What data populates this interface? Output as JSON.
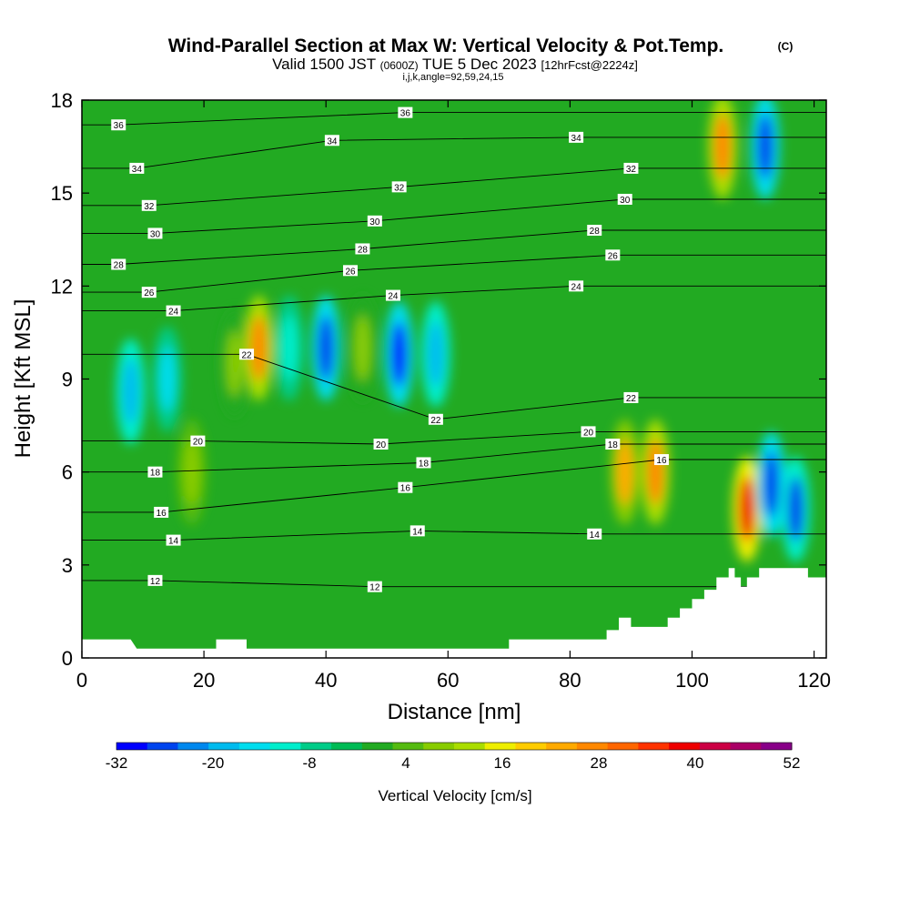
{
  "header": {
    "title": "Wind-Parallel Section at Max W: Vertical Velocity & Pot.Temp.",
    "copyright": "(C)",
    "valid_prefix": "Valid 1500 JST",
    "valid_z": "(0600Z)",
    "valid_date": "TUE 5 Dec 2023",
    "forecast": "[12hrFcst@2224z]",
    "indices": "i,j,k,angle=92,59,24,15"
  },
  "colorbar": {
    "label": "Vertical Velocity [cm/s]",
    "tick_labels": [
      "-32",
      "-20",
      "-8",
      "4",
      "16",
      "28",
      "40",
      "52"
    ],
    "min": -32,
    "max": 52,
    "step": 4,
    "colors": [
      "#0000ff",
      "#0044ee",
      "#0088ee",
      "#00bbee",
      "#00ddee",
      "#00eecc",
      "#00cc88",
      "#00bb55",
      "#22aa22",
      "#55bb11",
      "#88cc00",
      "#aadd00",
      "#eeee00",
      "#ffcc00",
      "#ffaa00",
      "#ff8800",
      "#ff6600",
      "#ff3300",
      "#ee0000",
      "#cc0044",
      "#aa0066",
      "#880088"
    ]
  },
  "chart_data": {
    "type": "heatmap",
    "title": "Wind-Parallel Section at Max W: Vertical Velocity & Pot.Temp.",
    "xlabel": "Distance [nm]",
    "ylabel": "Height [Kft MSL]",
    "xlim": [
      0,
      122
    ],
    "ylim": [
      0,
      18
    ],
    "x_ticks": [
      0,
      20,
      40,
      60,
      80,
      100,
      120
    ],
    "y_ticks": [
      0,
      3,
      6,
      9,
      12,
      15,
      18
    ],
    "field": "Vertical Velocity [cm/s]",
    "contour_field": "Potential Temperature",
    "features": [
      {
        "x": 8,
        "y": 8.6,
        "w": -18
      },
      {
        "x": 14,
        "y": 9.0,
        "w": -16
      },
      {
        "x": 18,
        "y": 6.0,
        "w": 10
      },
      {
        "x": 25,
        "y": 9.5,
        "w": 8
      },
      {
        "x": 29,
        "y": 10.0,
        "w": 30
      },
      {
        "x": 34,
        "y": 10.0,
        "w": -12
      },
      {
        "x": 40,
        "y": 10.0,
        "w": -28
      },
      {
        "x": 46,
        "y": 10.0,
        "w": 8
      },
      {
        "x": 52,
        "y": 9.8,
        "w": -30
      },
      {
        "x": 58,
        "y": 9.8,
        "w": -18
      },
      {
        "x": 89,
        "y": 6.0,
        "w": 24
      },
      {
        "x": 94,
        "y": 6.0,
        "w": 28
      },
      {
        "x": 105,
        "y": 16.5,
        "w": 30
      },
      {
        "x": 112,
        "y": 16.5,
        "w": -28
      },
      {
        "x": 109,
        "y": 4.8,
        "w": 42
      },
      {
        "x": 113,
        "y": 5.6,
        "w": -28
      },
      {
        "x": 117,
        "y": 4.8,
        "w": -26
      }
    ],
    "terrain": [
      [
        0,
        0.6
      ],
      [
        8,
        0.6
      ],
      [
        9,
        0.3
      ],
      [
        22,
        0.3
      ],
      [
        22,
        0.6
      ],
      [
        27,
        0.6
      ],
      [
        27,
        0.3
      ],
      [
        70,
        0.3
      ],
      [
        70,
        0.6
      ],
      [
        86,
        0.6
      ],
      [
        86,
        0.9
      ],
      [
        88,
        0.9
      ],
      [
        88,
        1.3
      ],
      [
        90,
        1.3
      ],
      [
        90,
        1.0
      ],
      [
        96,
        1.0
      ],
      [
        96,
        1.3
      ],
      [
        98,
        1.3
      ],
      [
        98,
        1.6
      ],
      [
        100,
        1.6
      ],
      [
        100,
        1.9
      ],
      [
        102,
        1.9
      ],
      [
        102,
        2.2
      ],
      [
        104,
        2.2
      ],
      [
        104,
        2.6
      ],
      [
        106,
        2.6
      ],
      [
        106,
        2.9
      ],
      [
        107,
        2.9
      ],
      [
        107,
        2.6
      ],
      [
        108,
        2.6
      ],
      [
        108,
        2.3
      ],
      [
        109,
        2.3
      ],
      [
        109,
        2.6
      ],
      [
        111,
        2.6
      ],
      [
        111,
        2.9
      ],
      [
        119,
        2.9
      ],
      [
        119,
        2.6
      ],
      [
        121,
        2.6
      ]
    ],
    "contours": [
      {
        "level": "12",
        "label_x": 12,
        "label_y": 2.5
      },
      {
        "level": "12",
        "label_x": 48,
        "label_y": 2.3
      },
      {
        "level": "14",
        "label_x": 15,
        "label_y": 3.8
      },
      {
        "level": "14",
        "label_x": 55,
        "label_y": 4.1
      },
      {
        "level": "14",
        "label_x": 84,
        "label_y": 4.0
      },
      {
        "level": "16",
        "label_x": 13,
        "label_y": 4.7
      },
      {
        "level": "16",
        "label_x": 53,
        "label_y": 5.5
      },
      {
        "level": "16",
        "label_x": 95,
        "label_y": 6.4
      },
      {
        "level": "18",
        "label_x": 12,
        "label_y": 6.0
      },
      {
        "level": "18",
        "label_x": 56,
        "label_y": 6.3
      },
      {
        "level": "18",
        "label_x": 87,
        "label_y": 6.9
      },
      {
        "level": "20",
        "label_x": 19,
        "label_y": 7.0
      },
      {
        "level": "20",
        "label_x": 49,
        "label_y": 6.9
      },
      {
        "level": "20",
        "label_x": 83,
        "label_y": 7.3
      },
      {
        "level": "22",
        "label_x": 27,
        "label_y": 9.8
      },
      {
        "level": "22",
        "label_x": 58,
        "label_y": 7.7
      },
      {
        "level": "22",
        "label_x": 90,
        "label_y": 8.4
      },
      {
        "level": "24",
        "label_x": 15,
        "label_y": 11.2
      },
      {
        "level": "24",
        "label_x": 51,
        "label_y": 11.7
      },
      {
        "level": "24",
        "label_x": 81,
        "label_y": 12.0
      },
      {
        "level": "26",
        "label_x": 11,
        "label_y": 11.8
      },
      {
        "level": "26",
        "label_x": 44,
        "label_y": 12.5
      },
      {
        "level": "26",
        "label_x": 87,
        "label_y": 13.0
      },
      {
        "level": "28",
        "label_x": 6,
        "label_y": 12.7
      },
      {
        "level": "28",
        "label_x": 46,
        "label_y": 13.2
      },
      {
        "level": "28",
        "label_x": 84,
        "label_y": 13.8
      },
      {
        "level": "30",
        "label_x": 12,
        "label_y": 13.7
      },
      {
        "level": "30",
        "label_x": 48,
        "label_y": 14.1
      },
      {
        "level": "30",
        "label_x": 89,
        "label_y": 14.8
      },
      {
        "level": "32",
        "label_x": 11,
        "label_y": 14.6
      },
      {
        "level": "32",
        "label_x": 52,
        "label_y": 15.2
      },
      {
        "level": "32",
        "label_x": 90,
        "label_y": 15.8
      },
      {
        "level": "34",
        "label_x": 9,
        "label_y": 15.8
      },
      {
        "level": "34",
        "label_x": 41,
        "label_y": 16.7
      },
      {
        "level": "34",
        "label_x": 81,
        "label_y": 16.8
      },
      {
        "level": "36",
        "label_x": 6,
        "label_y": 17.2
      },
      {
        "level": "36",
        "label_x": 53,
        "label_y": 17.6
      }
    ]
  }
}
